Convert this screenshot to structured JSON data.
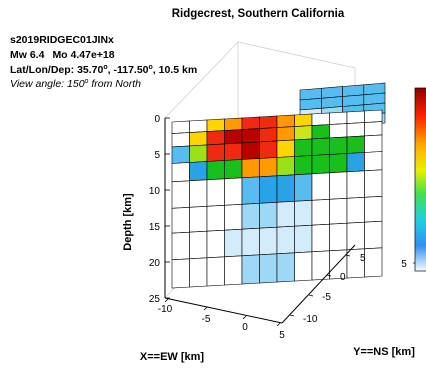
{
  "title": "Ridgecrest, Southern California",
  "header": {
    "event_id": "s2019RIDGEC01JINx",
    "mw_label": "Mw 6.4",
    "mo_label": "Mo 4.47e+18",
    "location_prefix": "Lat/Lon/Dep: 35.70",
    "location_mid": ", -117.50",
    "location_suffix": ", 10.5 km",
    "view_prefix": "View angle: 150",
    "view_suffix": " from North",
    "degree_symbol": "o"
  },
  "axes": {
    "z_label": "Depth [km]",
    "x_label": "X==EW [km]",
    "y_label": "Y==NS [km]",
    "z_ticks": [
      "0",
      "5",
      "10",
      "15",
      "20",
      "25"
    ],
    "x_ticks": [
      "-10",
      "-5",
      "0",
      "5"
    ],
    "y_ticks": [
      "-10",
      "-5",
      "0",
      "5"
    ],
    "colorbar_ticks": [
      "5"
    ]
  },
  "chart_data": {
    "type": "heatmap",
    "title": "Ridgecrest, Southern California",
    "description_fields": [
      "event_id",
      "mw",
      "mo",
      "lat",
      "lon",
      "depth",
      "view_angle"
    ],
    "mw": 6.4,
    "mo": 4.47e+18,
    "lat": 35.7,
    "lon": -117.5,
    "depth_km": 10.5,
    "view_angle_deg": 150,
    "xlabel": "X==EW [km]",
    "ylabel": "Y==NS [km]",
    "zlabel": "Depth [km]",
    "zlim": [
      0,
      25
    ],
    "xlim": [
      -12,
      6
    ],
    "ylim": [
      -12,
      6
    ],
    "colormap": "jet",
    "colors": {
      "white": "#ffffff",
      "pale_blue": "#d2ecfb",
      "light_blue": "#9fd8f6",
      "sky_blue": "#57bdf0",
      "blue": "#29a3e6",
      "green": "#19bf1c",
      "lime": "#9ce018",
      "yellow_green": "#cce61a",
      "yellow": "#ffd400",
      "orange": "#ff9a00",
      "red": "#f02a10",
      "dark_red": "#b80000"
    },
    "main_plane_rows": [
      [
        "white",
        "white",
        "yellow",
        "orange",
        "red",
        "red",
        "orange",
        "yellow",
        "white",
        "white",
        "white",
        "white"
      ],
      [
        "white",
        "yellow",
        "red",
        "dark_red",
        "dark_red",
        "red",
        "orange",
        "yellow_green",
        "green",
        "white",
        "white",
        "white"
      ],
      [
        "sky_blue",
        "lime",
        "red",
        "red",
        "dark_red",
        "red",
        "yellow",
        "green",
        "green",
        "green",
        "green",
        "white"
      ],
      [
        "white",
        "blue",
        "green",
        "green",
        "orange",
        "orange",
        "lime",
        "green",
        "green",
        "green",
        "blue",
        "white"
      ],
      [
        "white",
        "white",
        "white",
        "white",
        "sky_blue",
        "blue",
        "blue",
        "sky_blue",
        "white",
        "white",
        "white",
        "white"
      ],
      [
        "white",
        "white",
        "white",
        "white",
        "light_blue",
        "light_blue",
        "pale_blue",
        "pale_blue",
        "white",
        "white",
        "white",
        "white"
      ],
      [
        "white",
        "white",
        "white",
        "pale_blue",
        "pale_blue",
        "pale_blue",
        "pale_blue",
        "pale_blue",
        "white",
        "white",
        "white",
        "white"
      ],
      [
        "white",
        "white",
        "white",
        "white",
        "light_blue",
        "light_blue",
        "light_blue",
        "white",
        "white",
        "white",
        "white",
        "white"
      ]
    ],
    "back_plane_rows": [
      [
        "sky_blue",
        "sky_blue",
        "sky_blue",
        "sky_blue"
      ],
      [
        "sky_blue",
        "sky_blue",
        "sky_blue",
        "sky_blue"
      ],
      [
        "pale_blue",
        "light_blue",
        "sky_blue",
        "sky_blue"
      ],
      [
        "white",
        "pale_blue",
        "light_blue",
        "light_blue"
      ]
    ]
  }
}
